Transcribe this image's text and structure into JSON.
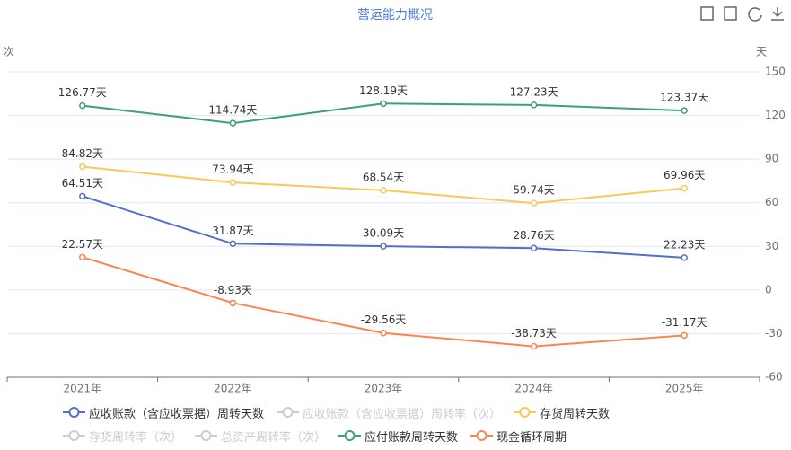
{
  "chart_data": {
    "type": "line",
    "title": "营运能力概况",
    "y_axis_name": "次",
    "y2_axis_name": "天",
    "categories": [
      "2021年",
      "2022年",
      "2023年",
      "2024年",
      "2025年"
    ],
    "y2lim": [
      -60,
      150
    ],
    "y2ticks": [
      -60,
      -30,
      0,
      30,
      60,
      90,
      120,
      150
    ],
    "grid": true,
    "series": [
      {
        "name": "应收账款（含应收票据）周转天数",
        "color": "#5470c6",
        "axis": "y2",
        "visible": true,
        "values": [
          64.51,
          31.87,
          30.09,
          28.76,
          22.23
        ],
        "value_labels": [
          "64.51天",
          "31.87天",
          "30.09天",
          "28.76天",
          "22.23天"
        ]
      },
      {
        "name": "应收账款（含应收票据）周转率（次）",
        "color": "#cccccc",
        "visible": false,
        "values": [
          null,
          null,
          null,
          null,
          null
        ]
      },
      {
        "name": "存货周转天数",
        "color": "#fac858",
        "axis": "y2",
        "visible": true,
        "values": [
          84.82,
          73.94,
          68.54,
          59.74,
          69.96
        ],
        "value_labels": [
          "84.82天",
          "73.94天",
          "68.54天",
          "59.74天",
          "69.96天"
        ]
      },
      {
        "name": "存货周转率（次）",
        "color": "#cccccc",
        "visible": false,
        "values": [
          null,
          null,
          null,
          null,
          null
        ]
      },
      {
        "name": "总资产周转率（次）",
        "color": "#cccccc",
        "visible": false,
        "values": [
          null,
          null,
          null,
          null,
          null
        ]
      },
      {
        "name": "应付账款周转天数",
        "color": "#3ba272",
        "axis": "y2",
        "visible": true,
        "values": [
          126.77,
          114.74,
          128.19,
          127.23,
          123.37
        ],
        "value_labels": [
          "126.77天",
          "114.74天",
          "128.19天",
          "127.23天",
          "123.37天"
        ]
      },
      {
        "name": "现金循环周期",
        "color": "#fc8452",
        "axis": "y2",
        "visible": true,
        "values": [
          22.57,
          -8.93,
          -29.56,
          -38.73,
          -31.17
        ],
        "value_labels": [
          "22.57天",
          "-8.93天",
          "-29.56天",
          "-38.73天",
          "-31.17天"
        ]
      }
    ]
  }
}
